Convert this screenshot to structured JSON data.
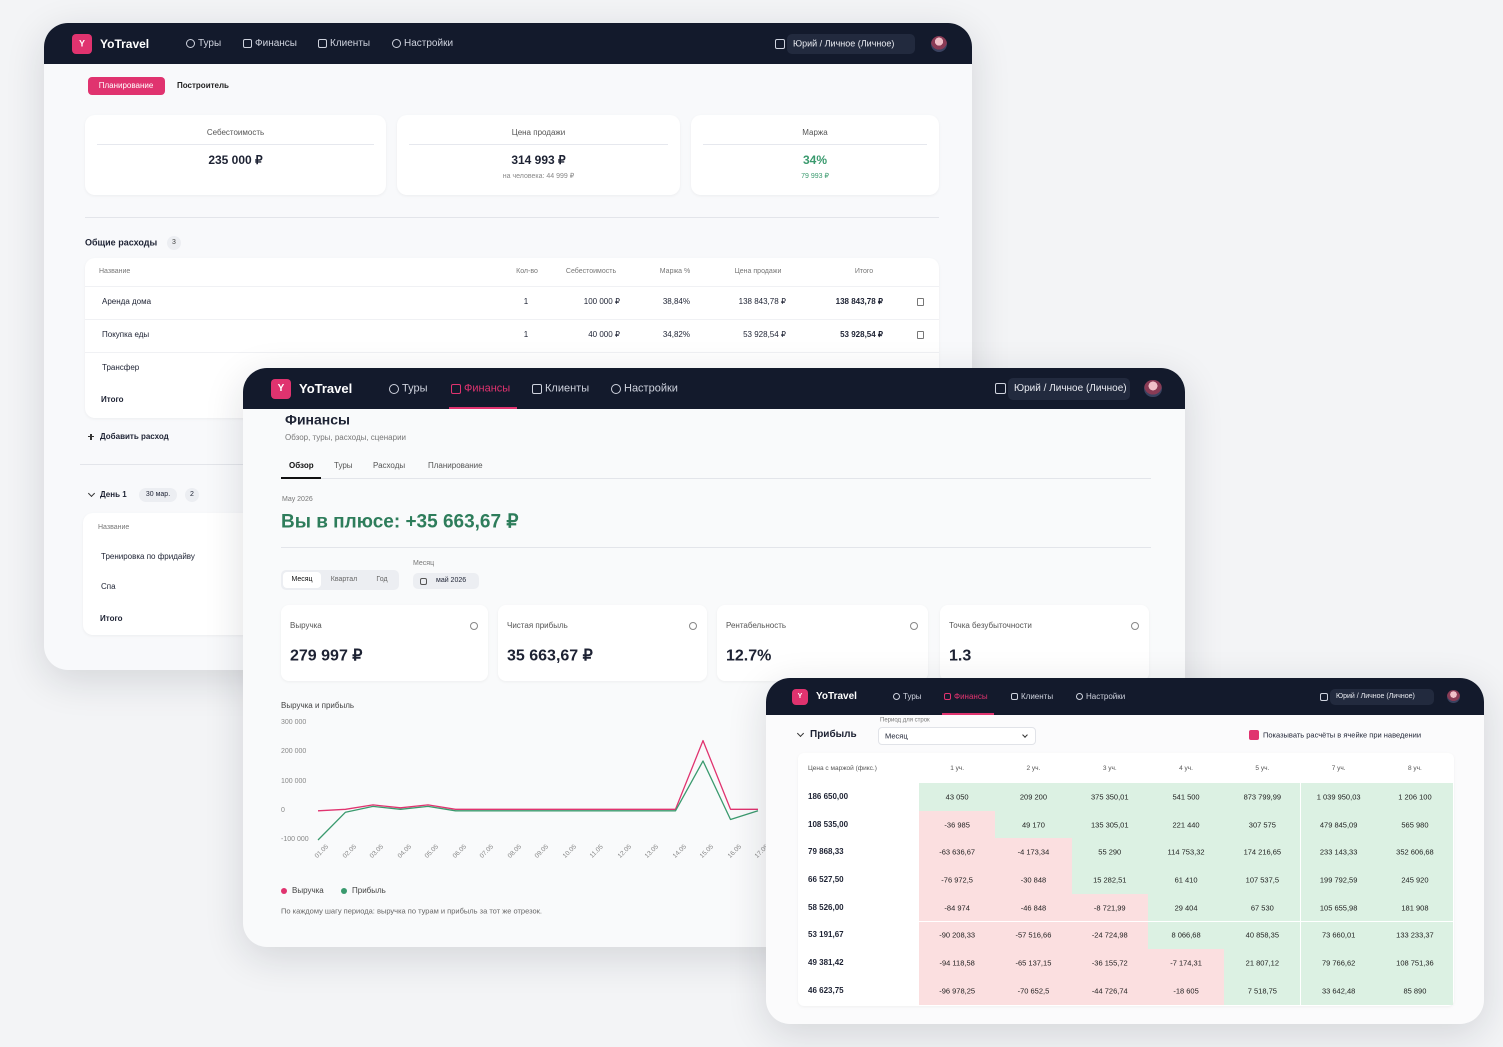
{
  "window1": {
    "nav": {
      "logo": "Y",
      "brand": "YoTravel",
      "items": [
        "Туры",
        "Финансы",
        "Клиенты",
        "Настройки"
      ],
      "account": "Юрий / Личное (Личное)"
    },
    "tabs": [
      "Планирование",
      "Построитель"
    ],
    "summary": [
      {
        "label": "Себестоимость",
        "value": "235 000 ₽"
      },
      {
        "label": "Цена продажи",
        "value": "314 993 ₽",
        "note": "на человека: 44 999 ₽"
      },
      {
        "label": "Маржа",
        "value": "34%",
        "note": "79 993 ₽"
      }
    ],
    "expenses": {
      "title": "Общие расходы",
      "count": "3",
      "columns": [
        "Название",
        "Кол-во",
        "Себестоимость",
        "Маржа %",
        "Цена продажи",
        "Итого"
      ],
      "rows": [
        [
          "Аренда дома",
          "1",
          "100 000 ₽",
          "38,84%",
          "138 843,78 ₽",
          "138 843,78 ₽"
        ],
        [
          "Покупка еды",
          "1",
          "40 000 ₽",
          "34,82%",
          "53 928,54 ₽",
          "53 928,54 ₽"
        ],
        [
          "Трансфер"
        ]
      ],
      "total": "Итого",
      "add": "Добавить расход"
    },
    "day": {
      "label": "День 1",
      "date": "30 мар.",
      "count": "2",
      "column": "Название",
      "rows": [
        "Тренировка по фридайву",
        "Спа"
      ],
      "total": "Итого"
    }
  },
  "window2": {
    "nav": {
      "logo": "Y",
      "brand": "YoTravel",
      "items": [
        "Туры",
        "Финансы",
        "Клиенты",
        "Настройки"
      ],
      "account": "Юрий / Личное (Личное)"
    },
    "title": "Финансы",
    "subtitle": "Обзор, туры, расходы, сценарии",
    "tabs": [
      "Обзор",
      "Туры",
      "Расходы",
      "Планирование"
    ],
    "period": "May 2026",
    "headline": "Вы в плюсе: +35 663,67 ₽",
    "segments": [
      "Месяц",
      "Квартал",
      "Год"
    ],
    "month_label": "Месяц",
    "month": "май 2026",
    "kpis": [
      {
        "label": "Выручка",
        "value": "279 997 ₽"
      },
      {
        "label": "Чистая прибыль",
        "value": "35 663,67 ₽"
      },
      {
        "label": "Рентабельность",
        "value": "12.7%"
      },
      {
        "label": "Точка безубыточности",
        "value": "1.3"
      }
    ],
    "chart": {
      "type": "line",
      "title": "Выручка и прибыль",
      "x": [
        "01.05",
        "02.05",
        "03.05",
        "04.05",
        "05.05",
        "06.05",
        "07.05",
        "08.05",
        "09.05",
        "10.05",
        "11.05",
        "12.05",
        "13.05",
        "14.05",
        "15.05",
        "16.05",
        "17.05"
      ],
      "series": [
        {
          "name": "Выручка",
          "color": "#e0336f",
          "values": [
            0,
            5000,
            20000,
            10000,
            20000,
            5000,
            5000,
            5000,
            5000,
            5000,
            5000,
            5000,
            5000,
            5000,
            240000,
            5000,
            5000
          ]
        },
        {
          "name": "Прибыль",
          "color": "#3a9a6e",
          "values": [
            -100000,
            -5000,
            15000,
            5000,
            15000,
            0,
            0,
            0,
            0,
            0,
            0,
            0,
            0,
            0,
            170000,
            -30000,
            0
          ]
        }
      ],
      "ylim": [
        -100000,
        300000
      ],
      "yticks": [
        {
          "value": 300000,
          "label": "300 000"
        },
        {
          "value": 200000,
          "label": "200 000"
        },
        {
          "value": 100000,
          "label": "100 000"
        },
        0,
        {
          "value": -100000,
          "label": "-100 000"
        }
      ],
      "grid": false
    },
    "footnote": "По каждому шагу периода: выручка по турам и прибыль за тот же отрезок."
  },
  "window3": {
    "nav": {
      "logo": "Y",
      "brand": "YoTravel",
      "items": [
        "Туры",
        "Финансы",
        "Клиенты",
        "Настройки"
      ],
      "account": "Юрий / Личное (Личное)"
    },
    "section": "Прибыль",
    "period_label": "Период для строк",
    "period": "Месяц",
    "checkbox": "Показывать расчёты в ячейке при наведении",
    "corner": "Цена с маржой (фикс.)",
    "columns": [
      "1 уч.",
      "2 уч.",
      "3 уч.",
      "4 уч.",
      "5 уч.",
      "7 уч.",
      "8 уч."
    ],
    "rows": [
      {
        "price": "186 650,00",
        "cells": [
          "43 050",
          "209 200",
          "375 350,01",
          "541 500",
          "873 799,99",
          "1 039 950,03",
          "1 206 100"
        ]
      },
      {
        "price": "108 535,00",
        "cells": [
          "-36 985",
          "49 170",
          "135 305,01",
          "221 440",
          "307 575",
          "479 845,09",
          "565 980"
        ]
      },
      {
        "price": "79 868,33",
        "cells": [
          "-63 636,67",
          "-4 173,34",
          "55 290",
          "114 753,32",
          "174 216,65",
          "233 143,33",
          "352 606,68"
        ]
      },
      {
        "price": "66 527,50",
        "cells": [
          "-76 972,5",
          "-30 848",
          "15 282,51",
          "61 410",
          "107 537,5",
          "199 792,59",
          "245 920"
        ]
      },
      {
        "price": "58 526,00",
        "cells": [
          "-84 974",
          "-46 848",
          "-8 721,99",
          "29 404",
          "67 530",
          "105 655,98",
          "181 908"
        ]
      },
      {
        "price": "53 191,67",
        "cells": [
          "-90 208,33",
          "-57 516,66",
          "-24 724,98",
          "8 066,68",
          "40 858,35",
          "73 660,01",
          "133 233,37"
        ]
      },
      {
        "price": "49 381,42",
        "cells": [
          "-94 118,58",
          "-65 137,15",
          "-36 155,72",
          "-7 174,31",
          "21 807,12",
          "79 766,62",
          "108 751,36"
        ]
      },
      {
        "price": "46 623,75",
        "cells": [
          "-96 978,25",
          "-70 652,5",
          "-44 726,74",
          "-18 605",
          "7 518,75",
          "33 642,48",
          "85 890"
        ]
      }
    ]
  }
}
